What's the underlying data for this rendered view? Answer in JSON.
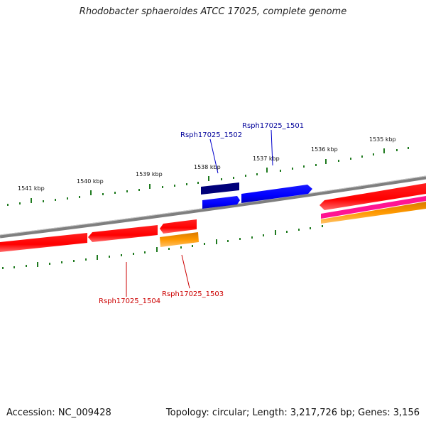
{
  "title": "Rhodobacter sphaeroides ATCC 17025, complete genome",
  "footer": {
    "accession": "Accession: NC_009428",
    "summary": "Topology: circular; Length: 3,217,726 bp; Genes: 3,156"
  },
  "scale": {
    "ticks": [
      "1535 kbp",
      "1536 kbp",
      "1537 kbp",
      "1538 kbp",
      "1539 kbp",
      "1540 kbp",
      "1541 kbp"
    ]
  },
  "gene_labels": {
    "rsph_1501": "Rsph17025_1501",
    "rsph_1502": "Rsph17025_1502",
    "rsph_1503": "Rsph17025_1503",
    "rsph_1504": "Rsph17025_1504"
  },
  "colors": {
    "backbone": "#808080",
    "tick": "#1f7a1f",
    "forward_cds": "#0000ff",
    "forward_dark": "#00007a",
    "reverse_cds": "#ff0000",
    "reverse_alt": "#ff9900",
    "reverse_pink": "#ff1493",
    "label_forward": "#00009a",
    "label_reverse": "#cc0000"
  }
}
